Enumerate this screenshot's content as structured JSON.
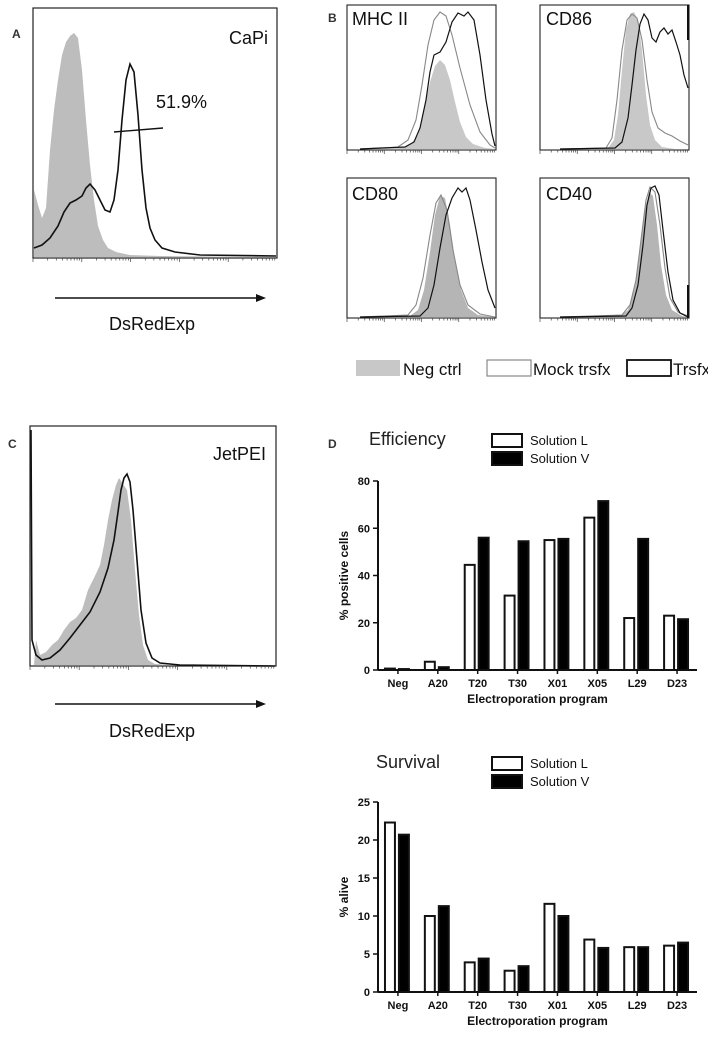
{
  "panels": {
    "A": {
      "letter": "A",
      "label": "CaPi",
      "percent": "51.9%",
      "xaxis": "DsRedExp"
    },
    "B": {
      "letter": "B",
      "plots": [
        {
          "label": "MHC II"
        },
        {
          "label": "CD86"
        },
        {
          "label": "CD80"
        },
        {
          "label": "CD40"
        }
      ],
      "legend": [
        {
          "label": "Neg ctrl",
          "fill": "#c8c8c8"
        },
        {
          "label": "Mock trsfx",
          "fill": "#ffffff"
        },
        {
          "label": "Trsfx",
          "fill": "#ffffff"
        }
      ]
    },
    "C": {
      "letter": "C",
      "label": "JetPEI",
      "xaxis": "DsRedExp"
    },
    "D": {
      "letter": "D"
    }
  },
  "chart_data": [
    {
      "type": "bar",
      "title": "Efficiency",
      "xlabel": "Electroporation program",
      "ylabel": "% positive cells",
      "ylim": [
        0,
        80
      ],
      "yticks": [
        0,
        20,
        40,
        60,
        80
      ],
      "categories": [
        "Neg",
        "A20",
        "T20",
        "T30",
        "X01",
        "X05",
        "L29",
        "D23"
      ],
      "series": [
        {
          "name": "Solution L",
          "color": "#ffffff",
          "values": [
            0.6,
            3.5,
            44.5,
            31.5,
            55,
            64.5,
            22,
            23
          ]
        },
        {
          "name": "Solution V",
          "color": "#000000",
          "values": [
            0.4,
            1.2,
            56,
            54.5,
            55.5,
            71.5,
            55.5,
            21.5
          ]
        }
      ],
      "legend_position": "top-right"
    },
    {
      "type": "bar",
      "title": "Survival",
      "xlabel": "Electroporation program",
      "ylabel": "% alive",
      "ylim": [
        0,
        25
      ],
      "yticks": [
        0,
        5,
        10,
        15,
        20,
        25
      ],
      "categories": [
        "Neg",
        "A20",
        "T20",
        "T30",
        "X01",
        "X05",
        "L29",
        "D23"
      ],
      "series": [
        {
          "name": "Solution L",
          "color": "#ffffff",
          "values": [
            22.3,
            10,
            3.9,
            2.8,
            11.6,
            6.9,
            5.9,
            6.1
          ]
        },
        {
          "name": "Solution V",
          "color": "#000000",
          "values": [
            20.7,
            11.3,
            4.4,
            3.4,
            10,
            5.8,
            5.9,
            6.5
          ]
        }
      ],
      "legend_position": "top-right"
    }
  ]
}
